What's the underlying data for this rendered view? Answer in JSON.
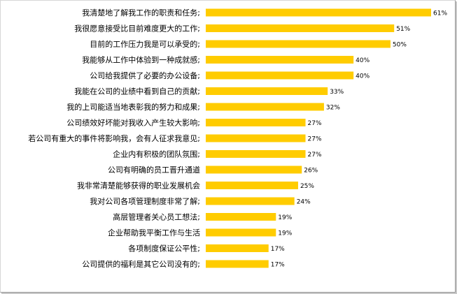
{
  "chart_data": {
    "type": "bar",
    "orientation": "horizontal",
    "title": "",
    "xlabel": "",
    "ylabel": "",
    "xlim": [
      0,
      61
    ],
    "grid": false,
    "legend": "none",
    "bar_color": "#FFCC00",
    "categories": [
      "我清楚地了解我工作的职责和任务;",
      "我很愿意接受比目前难度更大的工作;",
      "目前的工作压力我是可以承受的;",
      "我能够从工作中体验到一种成就感;",
      "公司给我提供了必要的办公设备;",
      "我能在公司的业绩中看到自己的贡献;",
      "我的上司能适当地表彰我的努力和成果;",
      "公司绩效好坏能对我收入产生较大影响;",
      "若公司有重大的事件将影响我，会有人征求我意见;",
      "企业内有积极的团队氛围;",
      "公司有明确的员工晋升通道",
      "我非常清楚能够获得的职业发展机会",
      "我对公司各项管理制度非常了解;",
      "高层管理者关心员工想法;",
      "企业帮助我平衡工作与生活",
      "各项制度保证公平性;",
      "公司提供的福利是其它公司没有的;"
    ],
    "values": [
      61,
      51,
      50,
      40,
      40,
      33,
      32,
      27,
      27,
      27,
      26,
      25,
      24,
      19,
      19,
      17,
      17
    ],
    "value_labels": [
      "61%",
      "51%",
      "50%",
      "40%",
      "40%",
      "33%",
      "32%",
      "27%",
      "27%",
      "27%",
      "26%",
      "25%",
      "24%",
      "19%",
      "19%",
      "17%",
      "17%"
    ]
  }
}
